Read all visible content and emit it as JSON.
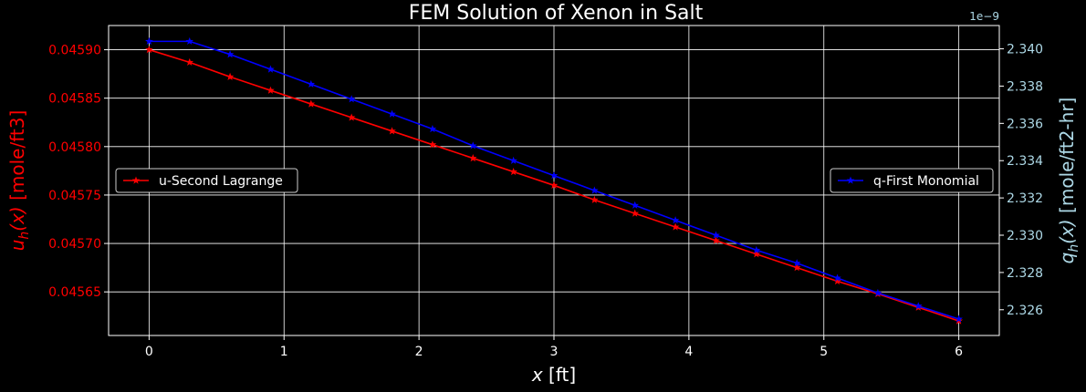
{
  "chart_data": {
    "type": "line",
    "title": "FEM Solution of Xenon in Salt",
    "xlabel": "x [ft]",
    "xlabel_parts": [
      "x",
      " [ft]"
    ],
    "xlim": [
      -0.3,
      6.3
    ],
    "x_ticks": [
      0,
      1,
      2,
      3,
      4,
      5,
      6
    ],
    "x_tick_labels": [
      "0",
      "1",
      "2",
      "3",
      "4",
      "5",
      "6"
    ],
    "grid": true,
    "left_axis": {
      "label": "u_h(x) [mole/ft3]",
      "label_parts": [
        "u",
        "h",
        "(x)",
        " [mole/ft3]"
      ],
      "color": "#ff0000",
      "ylim": [
        0.045605,
        0.045925
      ],
      "ticks": [
        0.04565,
        0.0457,
        0.04575,
        0.0458,
        0.04585,
        0.0459
      ],
      "tick_labels": [
        "0.04565",
        "0.04570",
        "0.04575",
        "0.04580",
        "0.04585",
        "0.04590"
      ]
    },
    "right_axis": {
      "label": "q_h(x) [mole/ft2-hr]",
      "label_parts": [
        "q",
        "h",
        "(x)",
        " [mole/ft2-hr]"
      ],
      "color": "#add8e6",
      "scale_label": "1e−9",
      "ylim": [
        2.32462,
        2.34125
      ],
      "ticks": [
        2.326,
        2.328,
        2.33,
        2.332,
        2.334,
        2.336,
        2.338,
        2.34
      ],
      "tick_labels": [
        "2.326",
        "2.328",
        "2.330",
        "2.332",
        "2.334",
        "2.336",
        "2.338",
        "2.340"
      ]
    },
    "series": [
      {
        "name": "u-Second Lagrange",
        "axis": "left",
        "color": "#ff0000",
        "marker": "star",
        "legend_position": "center-left",
        "x": [
          0,
          0.3,
          0.6,
          0.9,
          1.2,
          1.5,
          1.8,
          2.1,
          2.4,
          2.7,
          3.0,
          3.3,
          3.6,
          3.9,
          4.2,
          4.5,
          4.8,
          5.1,
          5.4,
          5.7,
          6.0
        ],
        "values": [
          0.0459,
          0.045887,
          0.045872,
          0.045858,
          0.045844,
          0.04583,
          0.045816,
          0.045802,
          0.045788,
          0.045774,
          0.04576,
          0.045745,
          0.045731,
          0.045717,
          0.045703,
          0.045689,
          0.045675,
          0.045661,
          0.045648,
          0.045634,
          0.04562
        ]
      },
      {
        "name": "q-First Monomial",
        "axis": "right",
        "color": "#0000ff",
        "marker": "star",
        "legend_position": "center-right",
        "x": [
          0,
          0.3,
          0.6,
          0.9,
          1.2,
          1.5,
          1.8,
          2.1,
          2.4,
          2.7,
          3.0,
          3.3,
          3.6,
          3.9,
          4.2,
          4.5,
          4.8,
          5.1,
          5.4,
          5.7,
          6.0
        ],
        "values": [
          2.3404,
          2.3404,
          2.3397,
          2.3389,
          2.3381,
          2.3373,
          2.3365,
          2.3357,
          2.3348,
          2.334,
          2.3332,
          2.3324,
          2.3316,
          2.3308,
          2.33,
          2.3292,
          2.3285,
          2.3277,
          2.3269,
          2.3262,
          2.3255
        ]
      }
    ]
  }
}
